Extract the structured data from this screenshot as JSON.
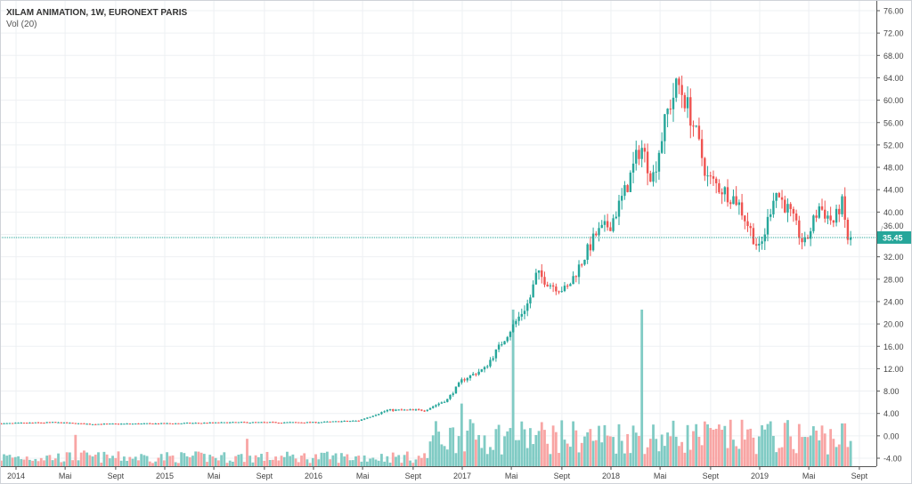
{
  "chart_data": {
    "type": "candlestick",
    "title": "XILAM ANIMATION, 1W, EURONEXT PARIS",
    "indicator": "Vol (20)",
    "last_price": "35.45",
    "y_ticks": [
      "76.00",
      "72.00",
      "68.00",
      "64.00",
      "60.00",
      "56.00",
      "52.00",
      "48.00",
      "44.00",
      "40.00",
      "36.00",
      "32.00",
      "28.00",
      "24.00",
      "20.00",
      "16.00",
      "12.00",
      "8.00",
      "4.00",
      "0.00",
      "-4.00"
    ],
    "ylim": [
      -4,
      76
    ],
    "x_ticks": [
      {
        "label": "2014",
        "t": 2014.0
      },
      {
        "label": "Mai",
        "t": 2014.33
      },
      {
        "label": "Sept",
        "t": 2014.67
      },
      {
        "label": "2015",
        "t": 2015.0
      },
      {
        "label": "Mai",
        "t": 2015.33
      },
      {
        "label": "Sept",
        "t": 2015.67
      },
      {
        "label": "2016",
        "t": 2016.0
      },
      {
        "label": "Mai",
        "t": 2016.33
      },
      {
        "label": "Sept",
        "t": 2016.67
      },
      {
        "label": "2017",
        "t": 2017.0
      },
      {
        "label": "Mai",
        "t": 2017.33
      },
      {
        "label": "Sept",
        "t": 2017.67
      },
      {
        "label": "2018",
        "t": 2018.0
      },
      {
        "label": "Mai",
        "t": 2018.33
      },
      {
        "label": "Sept",
        "t": 2018.67
      },
      {
        "label": "2019",
        "t": 2019.0
      },
      {
        "label": "Mai",
        "t": 2019.33
      },
      {
        "label": "Sept",
        "t": 2019.67
      }
    ],
    "price_path": [
      [
        2013.9,
        2.2
      ],
      [
        2014.25,
        2.4
      ],
      [
        2014.5,
        2.1
      ],
      [
        2015.0,
        2.2
      ],
      [
        2015.5,
        2.4
      ],
      [
        2016.0,
        2.4
      ],
      [
        2016.3,
        2.7
      ],
      [
        2016.5,
        4.6
      ],
      [
        2016.75,
        4.6
      ],
      [
        2016.9,
        6.5
      ],
      [
        2017.0,
        10
      ],
      [
        2017.15,
        12
      ],
      [
        2017.3,
        18
      ],
      [
        2017.45,
        24
      ],
      [
        2017.5,
        29
      ],
      [
        2017.6,
        27
      ],
      [
        2017.7,
        26
      ],
      [
        2017.8,
        31
      ],
      [
        2017.9,
        36
      ],
      [
        2018.0,
        38
      ],
      [
        2018.1,
        44
      ],
      [
        2018.2,
        52
      ],
      [
        2018.28,
        46
      ],
      [
        2018.38,
        58
      ],
      [
        2018.45,
        63
      ],
      [
        2018.5,
        60
      ],
      [
        2018.55,
        56
      ],
      [
        2018.65,
        46
      ],
      [
        2018.75,
        44
      ],
      [
        2018.85,
        42
      ],
      [
        2018.95,
        36
      ],
      [
        2019.0,
        33
      ],
      [
        2019.05,
        38
      ],
      [
        2019.1,
        44
      ],
      [
        2019.2,
        40
      ],
      [
        2019.3,
        34
      ],
      [
        2019.4,
        41
      ],
      [
        2019.5,
        38
      ],
      [
        2019.55,
        42
      ],
      [
        2019.6,
        34
      ],
      [
        2019.62,
        35.45
      ]
    ],
    "volume_spikes": [
      [
        2014.4,
        4
      ],
      [
        2015.55,
        3.5
      ],
      [
        2017.0,
        8
      ],
      [
        2017.35,
        20
      ],
      [
        2018.2,
        20
      ],
      [
        2014.45,
        2
      ]
    ],
    "colors": {
      "up": "#26a69a",
      "down": "#ef5350",
      "up_vol": "#80cbc4",
      "down_vol": "#f8a5a4",
      "last": "#26a69a"
    }
  }
}
